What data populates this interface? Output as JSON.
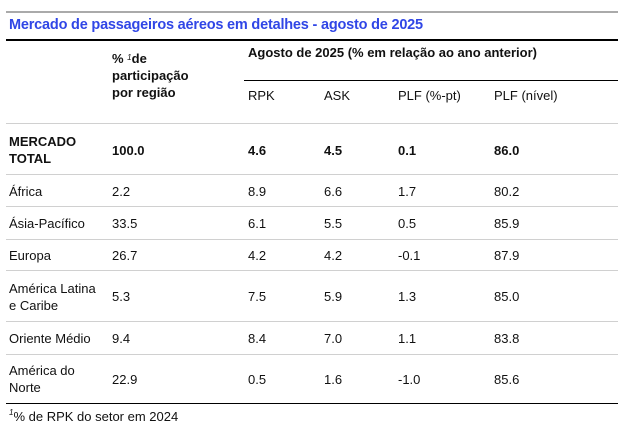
{
  "title": "Mercado de passageiros aéreos em detalhes - agosto de 2025",
  "header": {
    "share_col_sup": "1",
    "share_col_line1": "% ",
    "share_col_line1b": "de",
    "share_col_line2": "participação",
    "share_col_line3": "por região",
    "group_label": "Agosto de 2025 (% em relação ao ano anterior)",
    "columns": [
      "RPK",
      "ASK",
      "PLF (%-pt)",
      "PLF (nível)"
    ]
  },
  "rows": [
    {
      "region_line1": "MERCADO",
      "region_line2": "TOTAL",
      "share": "100.0",
      "rpk": "4.6",
      "ask": "4.5",
      "plf_pt": "0.1",
      "plf_level": "86.0",
      "bold": true
    },
    {
      "region_line1": "África",
      "region_line2": "",
      "share": "2.2",
      "rpk": "8.9",
      "ask": "6.6",
      "plf_pt": "1.7",
      "plf_level": "80.2"
    },
    {
      "region_line1": "Ásia-Pacífico",
      "region_line2": "",
      "share": "33.5",
      "rpk": "6.1",
      "ask": "5.5",
      "plf_pt": "0.5",
      "plf_level": "85.9"
    },
    {
      "region_line1": "Europa",
      "region_line2": "",
      "share": "26.7",
      "rpk": "4.2",
      "ask": "4.2",
      "plf_pt": "-0.1",
      "plf_level": "87.9"
    },
    {
      "region_line1": "América Latina",
      "region_line2": "e Caribe",
      "share": "5.3",
      "rpk": "7.5",
      "ask": "5.9",
      "plf_pt": "1.3",
      "plf_level": "85.0"
    },
    {
      "region_line1": "Oriente Médio",
      "region_line2": "",
      "share": "9.4",
      "rpk": "8.4",
      "ask": "7.0",
      "plf_pt": "1.1",
      "plf_level": "83.8"
    },
    {
      "region_line1": "América do",
      "region_line2": "Norte",
      "share": "22.9",
      "rpk": "0.5",
      "ask": "1.6",
      "plf_pt": "-1.0",
      "plf_level": "85.6"
    }
  ],
  "footnote": {
    "sup": "1",
    "text": "% de RPK do setor em 2024"
  }
}
